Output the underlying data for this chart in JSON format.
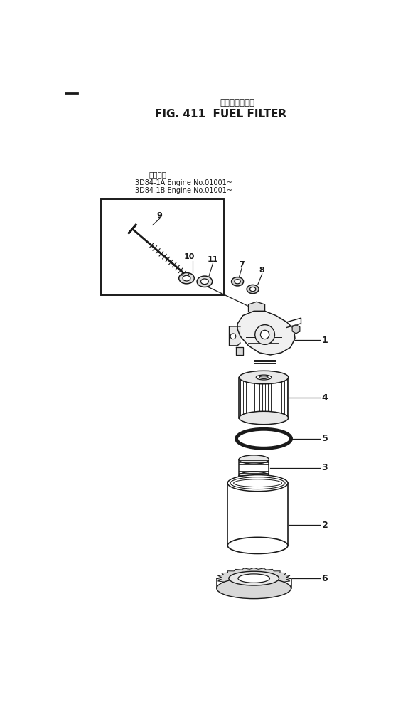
{
  "title_jp": "フェルフィルタ",
  "title_en": "FIG. 411  FUEL FILTER",
  "applicable_label": "適用号機",
  "engine_line1": "3D84-1A Engine No.01001~",
  "engine_line2": "3D84-1B Engine No.01001~",
  "bg_color": "#ffffff",
  "line_color": "#1a1a1a",
  "fig_width": 5.67,
  "fig_height": 10.01,
  "dpi": 100
}
